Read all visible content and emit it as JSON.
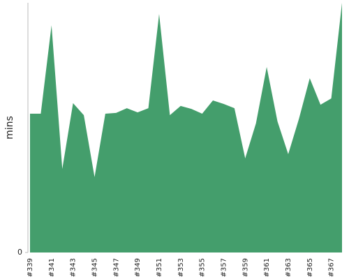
{
  "chart_data": {
    "type": "area",
    "y_label": "mins",
    "categories": [
      "#339",
      null,
      "#341",
      null,
      "#343",
      null,
      "#345",
      null,
      "#347",
      null,
      "#349",
      null,
      "#351",
      null,
      "#353",
      null,
      "#355",
      null,
      "#357",
      null,
      "#359",
      null,
      "#361",
      null,
      "#363",
      null,
      "#365",
      null,
      "#367",
      null
    ],
    "values": [
      55.6,
      55.6,
      91,
      33.5,
      59.8,
      55,
      30.2,
      55.6,
      55.9,
      57.8,
      56.1,
      57.8,
      95.5,
      55,
      58.7,
      57.5,
      55.6,
      60.9,
      59.5,
      57.8,
      37.7,
      51.7,
      74.3,
      52.5,
      39.4,
      53.6,
      69.8,
      59.2,
      61.7,
      100
    ],
    "color": "#449e6c",
    "ylim": [
      0,
      100
    ],
    "yticks": [
      0
    ]
  }
}
